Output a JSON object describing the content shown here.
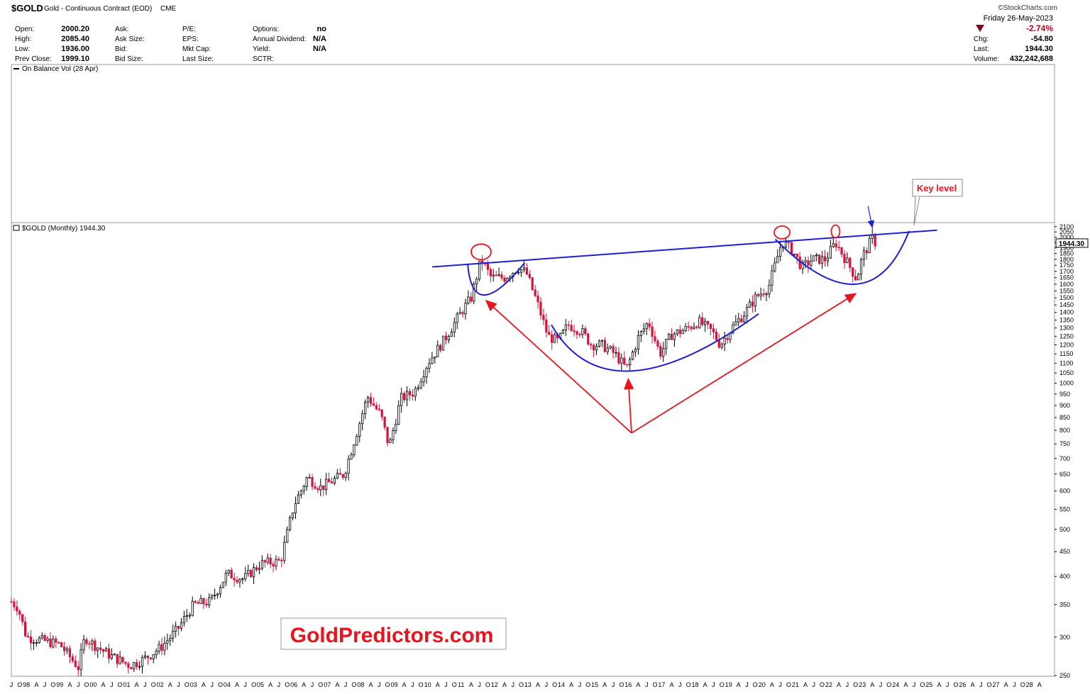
{
  "header": {
    "symbol": "$GOLD",
    "description": "Gold - Continuous Contract (EOD)",
    "exchange": "CME",
    "credit": "©StockCharts.com",
    "fields_col1": [
      {
        "label": "Open:",
        "value": "2000.20"
      },
      {
        "label": "High:",
        "value": "2085.40"
      },
      {
        "label": "Low:",
        "value": "1936.00"
      },
      {
        "label": "Prev Close:",
        "value": "1999.10"
      }
    ],
    "fields_col2": [
      {
        "label": "Ask:",
        "value": ""
      },
      {
        "label": "Ask Size:",
        "value": ""
      },
      {
        "label": "Bid:",
        "value": ""
      },
      {
        "label": "Bid Size:",
        "value": ""
      }
    ],
    "fields_col3": [
      {
        "label": "P/E:",
        "value": ""
      },
      {
        "label": "EPS:",
        "value": ""
      },
      {
        "label": "Mkt Cap:",
        "value": ""
      },
      {
        "label": "Last Size:",
        "value": ""
      }
    ],
    "fields_col4": [
      {
        "label": "Options:",
        "value": "no"
      },
      {
        "label": "Annual Dividend:",
        "value": "N/A"
      },
      {
        "label": "Yield:",
        "value": "N/A"
      },
      {
        "label": "SCTR:",
        "value": ""
      }
    ],
    "date": "Friday  26-May-2023",
    "pct_change": "-2.74%",
    "summary": [
      {
        "label": "Chg:",
        "value": "-54.80"
      },
      {
        "label": "Last:",
        "value": "1944.30"
      },
      {
        "label": "Volume:",
        "value": "432,242,688"
      }
    ]
  },
  "obv_label": "On Balance Vol (28 Apr)",
  "price_label": "$GOLD (Monthly) 1944.30",
  "last_price_tag": "1944.30",
  "annotations": {
    "key_level": "Key level",
    "watermark": "GoldPredictors.com"
  },
  "colors": {
    "up_candle": "#ffffff",
    "down_candle": "#d4143c",
    "trendline": "#1f1fd6",
    "arrows": "#e8141e",
    "circles": "#e8141e",
    "pct_down": "#c0001e"
  },
  "chart_data": {
    "type": "candlestick",
    "title": "$GOLD (Monthly) 1944.30",
    "scale": "log",
    "ylim": [
      250,
      2100
    ],
    "y_ticks": [
      250,
      300,
      350,
      400,
      450,
      500,
      550,
      600,
      650,
      700,
      750,
      800,
      850,
      900,
      950,
      1000,
      1050,
      1100,
      1150,
      1200,
      1250,
      1300,
      1350,
      1400,
      1450,
      1500,
      1550,
      1600,
      1650,
      1700,
      1750,
      1800,
      1850,
      1900,
      1950,
      2000,
      2050,
      2100
    ],
    "x_range": [
      1997.55,
      2028.75
    ],
    "x_ticks": [
      {
        "t": 1997.3,
        "label": "A"
      },
      {
        "t": 1997.55,
        "label": "J"
      },
      {
        "t": 1997.8,
        "label": "O"
      },
      {
        "t": 1998.0,
        "label": "98"
      },
      {
        "t": 1998.3,
        "label": "A"
      },
      {
        "t": 1998.55,
        "label": "J"
      },
      {
        "t": 1998.8,
        "label": "O"
      },
      {
        "t": 1999.0,
        "label": "99"
      },
      {
        "t": 1999.3,
        "label": "A"
      },
      {
        "t": 1999.55,
        "label": "J"
      },
      {
        "t": 1999.8,
        "label": "O"
      },
      {
        "t": 2000.0,
        "label": "00"
      },
      {
        "t": 2000.3,
        "label": "A"
      },
      {
        "t": 2000.55,
        "label": "J"
      },
      {
        "t": 2000.8,
        "label": "O"
      },
      {
        "t": 2001.0,
        "label": "01"
      },
      {
        "t": 2001.3,
        "label": "A"
      },
      {
        "t": 2001.55,
        "label": "J"
      },
      {
        "t": 2001.8,
        "label": "O"
      },
      {
        "t": 2002.0,
        "label": "02"
      },
      {
        "t": 2002.3,
        "label": "A"
      },
      {
        "t": 2002.55,
        "label": "J"
      },
      {
        "t": 2002.8,
        "label": "O"
      },
      {
        "t": 2003.0,
        "label": "03"
      },
      {
        "t": 2003.3,
        "label": "A"
      },
      {
        "t": 2003.55,
        "label": "J"
      },
      {
        "t": 2003.8,
        "label": "O"
      },
      {
        "t": 2004.0,
        "label": "04"
      },
      {
        "t": 2004.3,
        "label": "A"
      },
      {
        "t": 2004.55,
        "label": "J"
      },
      {
        "t": 2004.8,
        "label": "O"
      },
      {
        "t": 2005.0,
        "label": "05"
      },
      {
        "t": 2005.3,
        "label": "A"
      },
      {
        "t": 2005.55,
        "label": "J"
      },
      {
        "t": 2005.8,
        "label": "O"
      },
      {
        "t": 2006.0,
        "label": "06"
      },
      {
        "t": 2006.3,
        "label": "A"
      },
      {
        "t": 2006.55,
        "label": "J"
      },
      {
        "t": 2006.8,
        "label": "O"
      },
      {
        "t": 2007.0,
        "label": "07"
      },
      {
        "t": 2007.3,
        "label": "A"
      },
      {
        "t": 2007.55,
        "label": "J"
      },
      {
        "t": 2007.8,
        "label": "O"
      },
      {
        "t": 2008.0,
        "label": "08"
      },
      {
        "t": 2008.3,
        "label": "A"
      },
      {
        "t": 2008.55,
        "label": "J"
      },
      {
        "t": 2008.8,
        "label": "O"
      },
      {
        "t": 2009.0,
        "label": "09"
      },
      {
        "t": 2009.3,
        "label": "A"
      },
      {
        "t": 2009.55,
        "label": "J"
      },
      {
        "t": 2009.8,
        "label": "O"
      },
      {
        "t": 2010.0,
        "label": "10"
      },
      {
        "t": 2010.3,
        "label": "A"
      },
      {
        "t": 2010.55,
        "label": "J"
      },
      {
        "t": 2010.8,
        "label": "O"
      },
      {
        "t": 2011.0,
        "label": "11"
      },
      {
        "t": 2011.3,
        "label": "A"
      },
      {
        "t": 2011.55,
        "label": "J"
      },
      {
        "t": 2011.8,
        "label": "O"
      },
      {
        "t": 2012.0,
        "label": "12"
      },
      {
        "t": 2012.3,
        "label": "A"
      },
      {
        "t": 2012.55,
        "label": "J"
      },
      {
        "t": 2012.8,
        "label": "O"
      },
      {
        "t": 2013.0,
        "label": "13"
      },
      {
        "t": 2013.3,
        "label": "A"
      },
      {
        "t": 2013.55,
        "label": "J"
      },
      {
        "t": 2013.8,
        "label": "O"
      },
      {
        "t": 2014.0,
        "label": "14"
      },
      {
        "t": 2014.3,
        "label": "A"
      },
      {
        "t": 2014.55,
        "label": "J"
      },
      {
        "t": 2014.8,
        "label": "O"
      },
      {
        "t": 2015.0,
        "label": "15"
      },
      {
        "t": 2015.3,
        "label": "A"
      },
      {
        "t": 2015.55,
        "label": "J"
      },
      {
        "t": 2015.8,
        "label": "O"
      },
      {
        "t": 2016.0,
        "label": "16"
      },
      {
        "t": 2016.3,
        "label": "A"
      },
      {
        "t": 2016.55,
        "label": "J"
      },
      {
        "t": 2016.8,
        "label": "O"
      },
      {
        "t": 2017.0,
        "label": "17"
      },
      {
        "t": 2017.3,
        "label": "A"
      },
      {
        "t": 2017.55,
        "label": "J"
      },
      {
        "t": 2017.8,
        "label": "O"
      },
      {
        "t": 2018.0,
        "label": "18"
      },
      {
        "t": 2018.3,
        "label": "A"
      },
      {
        "t": 2018.55,
        "label": "J"
      },
      {
        "t": 2018.8,
        "label": "O"
      },
      {
        "t": 2019.0,
        "label": "19"
      },
      {
        "t": 2019.3,
        "label": "A"
      },
      {
        "t": 2019.55,
        "label": "J"
      },
      {
        "t": 2019.8,
        "label": "O"
      },
      {
        "t": 2020.0,
        "label": "20"
      },
      {
        "t": 2020.3,
        "label": "A"
      },
      {
        "t": 2020.55,
        "label": "J"
      },
      {
        "t": 2020.8,
        "label": "O"
      },
      {
        "t": 2021.0,
        "label": "21"
      },
      {
        "t": 2021.3,
        "label": "A"
      },
      {
        "t": 2021.55,
        "label": "J"
      },
      {
        "t": 2021.8,
        "label": "O"
      },
      {
        "t": 2022.0,
        "label": "22"
      },
      {
        "t": 2022.3,
        "label": "A"
      },
      {
        "t": 2022.55,
        "label": "J"
      },
      {
        "t": 2022.8,
        "label": "O"
      },
      {
        "t": 2023.0,
        "label": "23"
      },
      {
        "t": 2023.3,
        "label": "A"
      },
      {
        "t": 2023.55,
        "label": "J"
      },
      {
        "t": 2023.8,
        "label": "O"
      },
      {
        "t": 2024.0,
        "label": "24"
      },
      {
        "t": 2024.3,
        "label": "A"
      },
      {
        "t": 2024.55,
        "label": "J"
      },
      {
        "t": 2024.8,
        "label": "O"
      },
      {
        "t": 2025.0,
        "label": "25"
      },
      {
        "t": 2025.3,
        "label": "A"
      },
      {
        "t": 2025.55,
        "label": "J"
      },
      {
        "t": 2025.8,
        "label": "O"
      },
      {
        "t": 2026.0,
        "label": "26"
      },
      {
        "t": 2026.3,
        "label": "A"
      },
      {
        "t": 2026.55,
        "label": "J"
      },
      {
        "t": 2026.8,
        "label": "O"
      },
      {
        "t": 2027.0,
        "label": "27"
      },
      {
        "t": 2027.3,
        "label": "A"
      },
      {
        "t": 2027.55,
        "label": "J"
      },
      {
        "t": 2027.8,
        "label": "O"
      },
      {
        "t": 2028.0,
        "label": "28"
      },
      {
        "t": 2028.3,
        "label": "A"
      }
    ],
    "path_anchors": [
      [
        1997.55,
        355
      ],
      [
        1997.75,
        345
      ],
      [
        1998.0,
        300
      ],
      [
        1998.5,
        295
      ],
      [
        1999.0,
        290
      ],
      [
        1999.55,
        260
      ],
      [
        1999.75,
        300
      ],
      [
        2000.0,
        290
      ],
      [
        2000.5,
        275
      ],
      [
        2001.1,
        262
      ],
      [
        2001.5,
        270
      ],
      [
        2002.0,
        285
      ],
      [
        2002.5,
        310
      ],
      [
        2003.0,
        350
      ],
      [
        2003.5,
        355
      ],
      [
        2004.0,
        405
      ],
      [
        2004.5,
        395
      ],
      [
        2005.0,
        425
      ],
      [
        2005.6,
        430
      ],
      [
        2006.0,
        560
      ],
      [
        2006.4,
        640
      ],
      [
        2006.8,
        610
      ],
      [
        2007.5,
        650
      ],
      [
        2007.9,
        800
      ],
      [
        2008.2,
        940
      ],
      [
        2008.6,
        860
      ],
      [
        2008.85,
        740
      ],
      [
        2009.2,
        930
      ],
      [
        2009.6,
        960
      ],
      [
        2010.0,
        1100
      ],
      [
        2010.5,
        1230
      ],
      [
        2011.0,
        1400
      ],
      [
        2011.3,
        1500
      ],
      [
        2011.6,
        1800
      ],
      [
        2011.9,
        1650
      ],
      [
        2012.3,
        1650
      ],
      [
        2012.7,
        1730
      ],
      [
        2012.95,
        1690
      ],
      [
        2013.3,
        1450
      ],
      [
        2013.6,
        1250
      ],
      [
        2013.9,
        1220
      ],
      [
        2014.2,
        1320
      ],
      [
        2014.6,
        1280
      ],
      [
        2014.9,
        1200
      ],
      [
        2015.2,
        1200
      ],
      [
        2015.6,
        1150
      ],
      [
        2015.95,
        1070
      ],
      [
        2016.3,
        1240
      ],
      [
        2016.6,
        1340
      ],
      [
        2016.95,
        1150
      ],
      [
        2017.3,
        1260
      ],
      [
        2017.7,
        1290
      ],
      [
        2018.1,
        1340
      ],
      [
        2018.5,
        1280
      ],
      [
        2018.75,
        1200
      ],
      [
        2019.1,
        1300
      ],
      [
        2019.5,
        1400
      ],
      [
        2019.8,
        1500
      ],
      [
        2020.2,
        1580
      ],
      [
        2020.6,
        1960
      ],
      [
        2020.9,
        1880
      ],
      [
        2021.2,
        1730
      ],
      [
        2021.5,
        1800
      ],
      [
        2021.9,
        1800
      ],
      [
        2022.2,
        1950
      ],
      [
        2022.5,
        1800
      ],
      [
        2022.83,
        1640
      ],
      [
        2023.0,
        1820
      ],
      [
        2023.3,
        1990
      ],
      [
        2023.4,
        1944
      ]
    ],
    "trendline": [
      [
        2011.7,
        1800
      ],
      [
        2024.3,
        2060
      ]
    ],
    "resistance_line": [
      [
        2011.2,
        1760
      ],
      [
        2024.6,
        2060
      ]
    ],
    "cup_small": [
      [
        2011.2,
        1760
      ],
      [
        2011.7,
        1520
      ],
      [
        2012.9,
        1770
      ]
    ],
    "cup_large": [
      [
        2013.7,
        1320
      ],
      [
        2016.1,
        1060
      ],
      [
        2019.9,
        1390
      ]
    ],
    "cup_right": [
      [
        2020.4,
        1980
      ],
      [
        2022.8,
        1600
      ],
      [
        2024.4,
        2060
      ]
    ]
  }
}
